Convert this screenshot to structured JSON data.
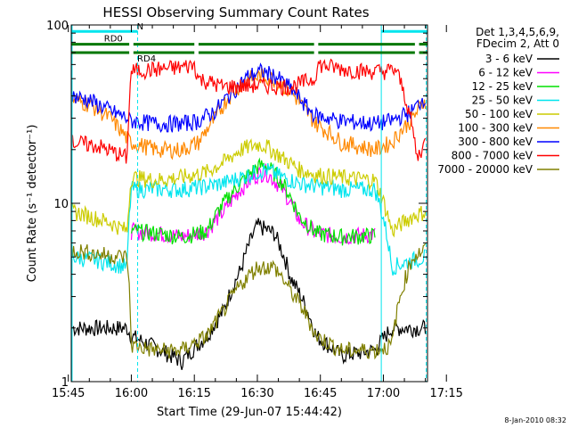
{
  "chart_data": {
    "type": "line",
    "title": "HESSI Observing Summary Count Rates",
    "xlabel": "Start Time (29-Jun-07 15:44:42)",
    "ylabel": "Count Rate (s⁻¹ detector⁻¹)",
    "y_scale": "log",
    "ylim": [
      1,
      100
    ],
    "xlim_minutes": [
      15.7,
      100.5
    ],
    "x_ticks": [
      {
        "label": "15:45",
        "minutes": 15
      },
      {
        "label": "16:00",
        "minutes": 30
      },
      {
        "label": "16:15",
        "minutes": 45
      },
      {
        "label": "16:30",
        "minutes": 60
      },
      {
        "label": "16:45",
        "minutes": 75
      },
      {
        "label": "17:00",
        "minutes": 90
      },
      {
        "label": "17:15",
        "minutes": 105
      }
    ],
    "y_ticks": [
      {
        "label": "1",
        "value": 1
      },
      {
        "label": "10",
        "value": 10
      },
      {
        "label": "100",
        "value": 100
      }
    ],
    "legend_header": [
      "Det 1,3,4,5,6,9,",
      "FDecim 2, Att 0"
    ],
    "legend_placement": "right",
    "footer_date": "8-Jan-2010 08:32",
    "flags": [
      {
        "label": "N",
        "color": "#00e5ee",
        "value": 92,
        "segments": [
          [
            15.7,
            31.5
          ],
          [
            89.5,
            100.5
          ]
        ]
      },
      {
        "label": "RD0",
        "color": "#007700",
        "value": 78,
        "segments": [
          [
            15.7,
            29.5
          ],
          [
            30.5,
            45
          ],
          [
            46,
            73.5
          ],
          [
            74.5,
            97.5
          ],
          [
            98.5,
            100.5
          ]
        ]
      },
      {
        "label": "RD4",
        "color": "#007700",
        "value": 70,
        "segments": [
          [
            15.7,
            29.5
          ],
          [
            30.5,
            45
          ],
          [
            46,
            73.5
          ],
          [
            74.5,
            97.5
          ],
          [
            98.5,
            100.5
          ]
        ]
      }
    ],
    "vlines": [
      {
        "color": "#00e5ee",
        "minutes": 15.9,
        "dashed": false
      },
      {
        "color": "#00e5ee",
        "minutes": 31.5,
        "dashed": true
      },
      {
        "color": "#00e5ee",
        "minutes": 89.5,
        "dashed": false
      },
      {
        "color": "#00e5ee",
        "minutes": 100.2,
        "dashed": true
      }
    ],
    "series": [
      {
        "name": "3 - 6 keV",
        "color": "#000000",
        "x": [
          16,
          22,
          29,
          30,
          37,
          42,
          48,
          52,
          56,
          60,
          64,
          68,
          74,
          80,
          88,
          92,
          97,
          100
        ],
        "y": [
          2,
          2,
          2,
          1.8,
          1.5,
          1.3,
          1.8,
          2.5,
          4.2,
          7.5,
          6.8,
          3.8,
          1.8,
          1.4,
          1.5,
          2,
          2,
          2
        ]
      },
      {
        "name": "6 - 12 keV",
        "color": "#ff00ff",
        "x": [
          30,
          36,
          42,
          48,
          52,
          56,
          60,
          62,
          66,
          70,
          74,
          80,
          88
        ],
        "y": [
          7,
          6.8,
          6.5,
          7,
          9,
          12,
          14.5,
          15,
          12,
          8,
          6.8,
          6.5,
          6.7
        ]
      },
      {
        "name": "12 - 25 keV",
        "color": "#00e000",
        "x": [
          30,
          36,
          42,
          48,
          52,
          56,
          60,
          62,
          66,
          70,
          74,
          80,
          88
        ],
        "y": [
          7,
          6.8,
          6.5,
          7,
          10,
          13,
          16,
          16.5,
          13,
          8.5,
          6.8,
          6.5,
          6.6
        ]
      },
      {
        "name": "25 - 50 keV",
        "color": "#00e5ee",
        "x": [
          16,
          22,
          29,
          30,
          36,
          42,
          48,
          52,
          56,
          60,
          62,
          66,
          70,
          74,
          80,
          88,
          92,
          97,
          100
        ],
        "y": [
          5,
          4.8,
          4.4,
          12,
          12,
          12,
          12.5,
          13,
          14,
          15,
          15.5,
          14,
          13,
          12.5,
          12,
          12,
          4.4,
          4.8,
          5
        ]
      },
      {
        "name": "50 - 100 keV",
        "color": "#cccc00",
        "x": [
          16,
          20,
          25,
          29,
          30,
          36,
          42,
          48,
          52,
          56,
          60,
          62,
          66,
          70,
          74,
          80,
          88,
          92,
          97,
          100
        ],
        "y": [
          9,
          8.5,
          7.8,
          7,
          14,
          13.5,
          14,
          15,
          17,
          20,
          21.5,
          21,
          18,
          15.5,
          14.5,
          14,
          13.5,
          7,
          8.5,
          9
        ]
      },
      {
        "name": "100 - 300 keV",
        "color": "#ff8800",
        "x": [
          16,
          20,
          25,
          29,
          30,
          36,
          42,
          46,
          50,
          54,
          58,
          61,
          64,
          68,
          72,
          74,
          80,
          88,
          92,
          97,
          100
        ],
        "y": [
          38,
          36,
          30,
          23,
          22,
          20,
          20,
          22,
          30,
          42,
          50,
          52,
          50,
          42,
          32,
          28,
          22,
          20,
          22,
          30,
          38
        ]
      },
      {
        "name": "300 - 800 keV",
        "color": "#0000ff",
        "x": [
          16,
          20,
          25,
          29,
          30,
          36,
          42,
          46,
          50,
          54,
          58,
          61,
          64,
          68,
          72,
          74,
          80,
          88,
          92,
          97,
          100
        ],
        "y": [
          40,
          38,
          33,
          30,
          29,
          28,
          28,
          29,
          33,
          42,
          52,
          55,
          52,
          44,
          34,
          31,
          29,
          28,
          29,
          33,
          40
        ]
      },
      {
        "name": "800 - 7000 keV",
        "color": "#ff0000",
        "x": [
          16,
          22,
          29,
          30,
          34,
          38,
          42,
          45,
          46,
          52,
          60,
          68,
          73.5,
          74.5,
          78,
          82,
          86,
          90,
          93,
          98,
          100
        ],
        "y": [
          22,
          21,
          18,
          55,
          56,
          57,
          58,
          60,
          50,
          45,
          46,
          45,
          50,
          60,
          58,
          56,
          55,
          55,
          56,
          18,
          22
        ]
      },
      {
        "name": "7000 - 20000 keV",
        "color": "#808000",
        "x": [
          16,
          22,
          29,
          30,
          36,
          42,
          48,
          52,
          56,
          60,
          64,
          68,
          74,
          80,
          88,
          92,
          97,
          100
        ],
        "y": [
          5.5,
          5.2,
          5,
          1.6,
          1.5,
          1.5,
          1.8,
          2.5,
          3.5,
          4.4,
          4.4,
          3.2,
          1.8,
          1.5,
          1.5,
          1.6,
          5,
          5.5
        ]
      }
    ]
  }
}
